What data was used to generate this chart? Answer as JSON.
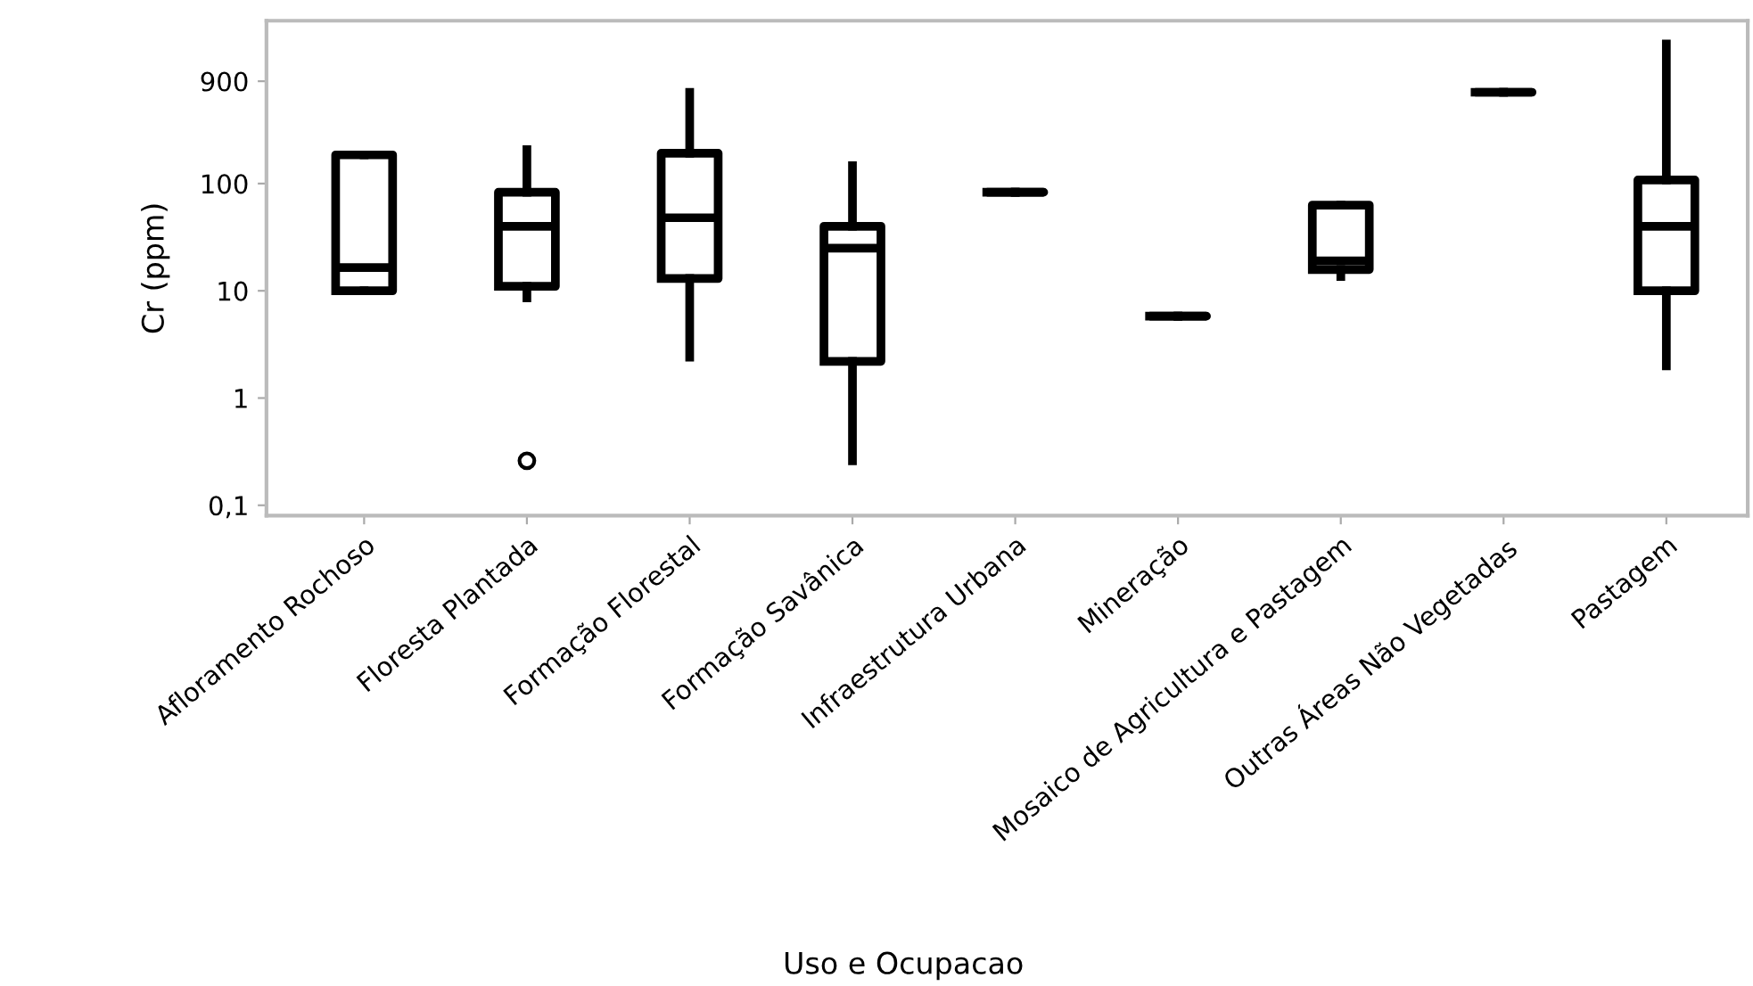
{
  "chart_data": {
    "type": "box",
    "xlabel": "Uso e Ocupacao",
    "ylabel": "Cr (ppm)",
    "categories": [
      "Afloramento Rochoso",
      "Floresta Plantada",
      "Formação Florestal",
      "Formação Savânica",
      "Infraestrutura Urbana",
      "Mineração",
      "Mosaico de Agricultura e Pastagem",
      "Outras Áreas Não Vegetadas",
      "Pastagem"
    ],
    "boxes": [
      {
        "low": 10,
        "q1": 10,
        "median": 16.5,
        "q3": 185,
        "high": 185
      },
      {
        "low": 8.6,
        "q1": 11,
        "median": 40,
        "q3": 83,
        "high": 207,
        "outliers": [
          0.26
        ]
      },
      {
        "low": 2.4,
        "q1": 13,
        "median": 48,
        "q3": 192,
        "high": 710
      },
      {
        "low": 0.26,
        "q1": 2.2,
        "median": 25,
        "q3": 40,
        "high": 147
      },
      {
        "low": 83,
        "q1": 83,
        "median": 83,
        "q3": 83,
        "high": 83
      },
      {
        "low": 5.8,
        "q1": 5.8,
        "median": 5.8,
        "q3": 5.8,
        "high": 5.8
      },
      {
        "low": 13.6,
        "q1": 15.8,
        "median": 19,
        "q3": 63,
        "high": 63
      },
      {
        "low": 710,
        "q1": 710,
        "median": 710,
        "q3": 710,
        "high": 710
      },
      {
        "low": 2,
        "q1": 10,
        "median": 40,
        "q3": 108,
        "high": 2000
      }
    ],
    "log": "y",
    "ylim": [
      0.08,
      3300
    ],
    "yticks": [
      {
        "value": 0.1,
        "label": "0,1"
      },
      1,
      10,
      100,
      900
    ],
    "grid": false,
    "legend": false
  }
}
